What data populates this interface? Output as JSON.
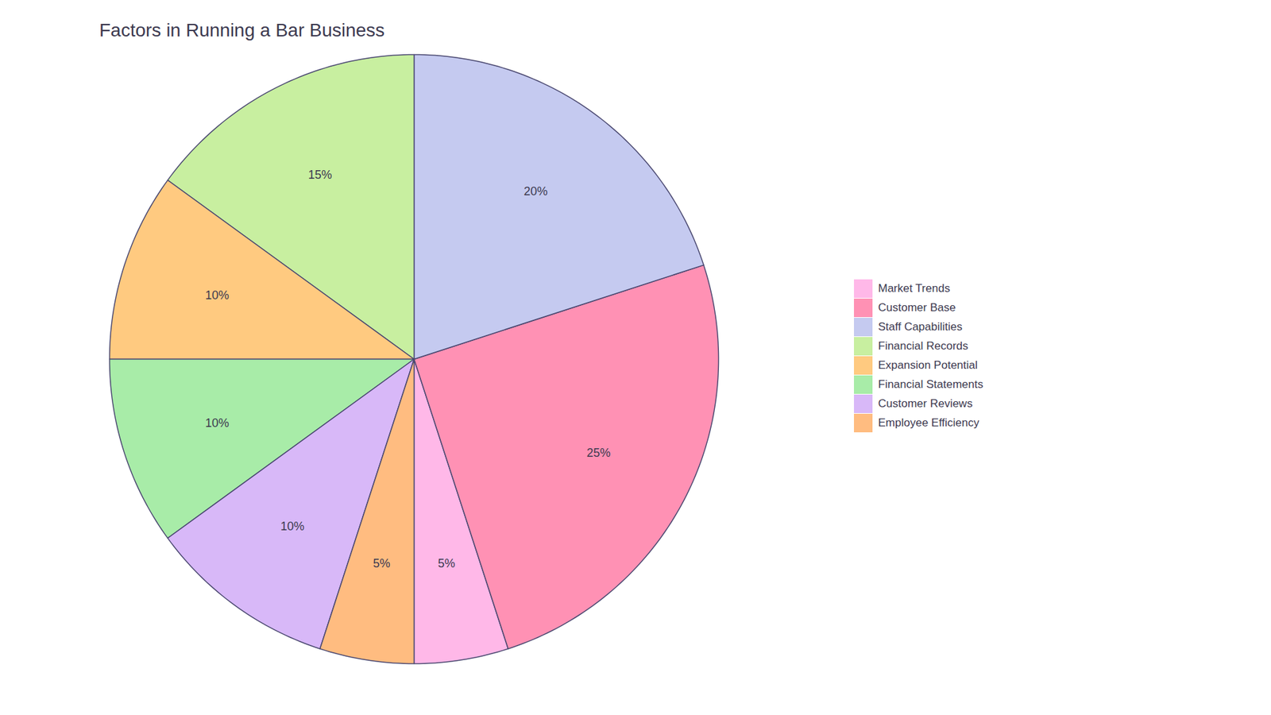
{
  "chart_data": {
    "type": "pie",
    "title": "Factors in Running a Bar Business",
    "categories": [
      "Market Trends",
      "Customer Base",
      "Staff Capabilities",
      "Financial Records",
      "Expansion Potential",
      "Financial Statements",
      "Customer Reviews",
      "Employee Efficiency"
    ],
    "values": [
      5,
      25,
      20,
      15,
      10,
      10,
      10,
      5
    ],
    "value_labels": [
      "5%",
      "25%",
      "20%",
      "15%",
      "10%",
      "10%",
      "10%",
      "5%"
    ],
    "colors": [
      "#FFB8E8",
      "#FF91B4",
      "#C5CAF0",
      "#C8EFA0",
      "#FFCA80",
      "#A8ECA8",
      "#D8B8F8",
      "#FFBC80"
    ],
    "data_labels": true,
    "legend": "right"
  }
}
